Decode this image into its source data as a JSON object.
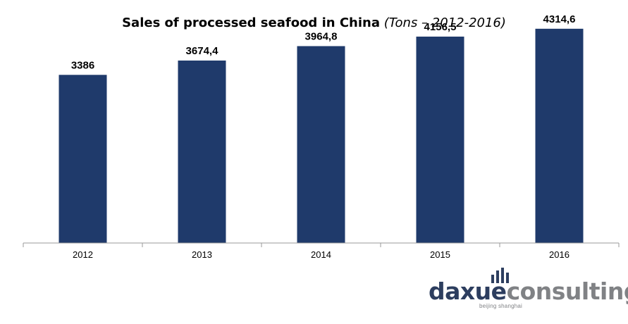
{
  "chart_data": {
    "type": "bar",
    "title": "Sales of processed seafood in China",
    "subtitle": "(Tons – 2012-2016)",
    "categories": [
      "2012",
      "2013",
      "2014",
      "2015",
      "2016"
    ],
    "values": [
      3386,
      3674.4,
      3964.8,
      4156.5,
      4314.6
    ],
    "value_labels": [
      "3386",
      "3674,4",
      "3964,8",
      "4156,5",
      "4314,6"
    ],
    "xlabel": "",
    "ylabel": "",
    "ylim": [
      0,
      5000
    ],
    "grid": false,
    "legend": "none",
    "bar_color": "#1f3a6b"
  },
  "logo": {
    "word_part1": "daxue",
    "word_part2": "consulting",
    "tagline": "beijing shanghai",
    "brand_color": "#2d3e5f",
    "secondary_color": "#808285"
  }
}
